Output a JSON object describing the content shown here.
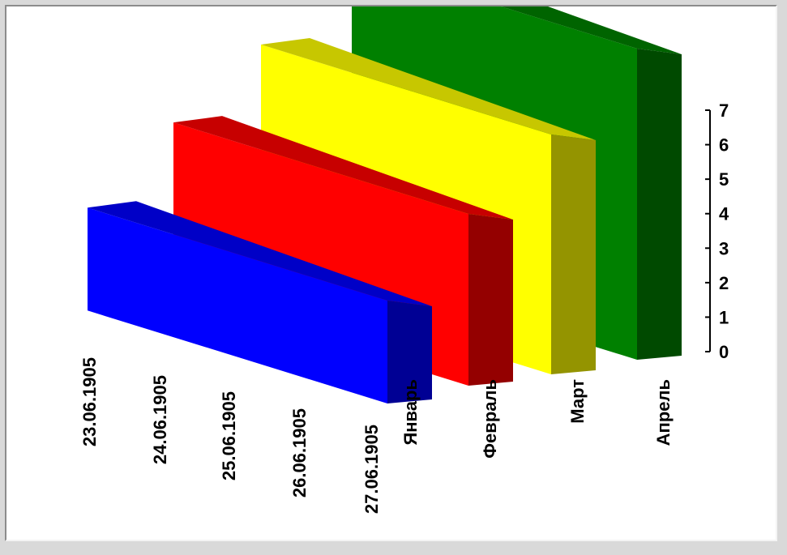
{
  "chart_data": {
    "type": "bar",
    "variant": "3d-rotated",
    "categories": [
      "Январь",
      "Февраль",
      "Март",
      "Апрель"
    ],
    "values": [
      1,
      3,
      5,
      7
    ],
    "bar_colors": [
      "#0000ff",
      "#ff0000",
      "#ffff00",
      "#008000"
    ],
    "series_axis_labels": [
      "23.06.1905",
      "24.06.1905",
      "25.06.1905",
      "26.06.1905",
      "27.06.1905"
    ],
    "y_ticks": [
      "0",
      "1",
      "2",
      "3",
      "4",
      "5",
      "6",
      "7"
    ],
    "ylim": [
      0,
      7
    ],
    "title": "",
    "xlabel": "",
    "ylabel": "",
    "grid": false,
    "legend": "none"
  }
}
